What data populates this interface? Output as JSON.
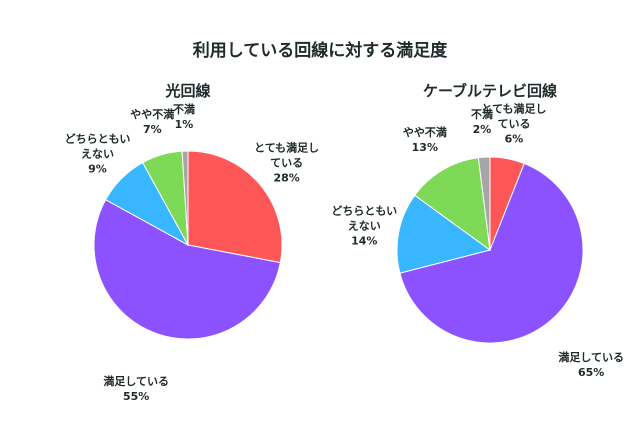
{
  "title": "利用している回線に対する満足度",
  "chart_data": [
    {
      "type": "pie",
      "title": "光回線",
      "categories": [
        "とても満足している",
        "満足している",
        "どちらともいえない",
        "やや不満",
        "不満"
      ],
      "values": [
        28,
        55,
        9,
        7,
        1
      ],
      "value_labels": [
        "28%",
        "55%",
        "9%",
        "7%",
        "1%"
      ],
      "colors": [
        "#ff5757",
        "#8c52ff",
        "#38b6ff",
        "#7ed957",
        "#a6a6a6"
      ]
    },
    {
      "type": "pie",
      "title": "ケーブルテレビ回線",
      "categories": [
        "とても満足している",
        "満足している",
        "どちらともいえない",
        "やや不満",
        "不満"
      ],
      "values": [
        6,
        65,
        14,
        13,
        2
      ],
      "value_labels": [
        "6%",
        "65%",
        "14%",
        "13%",
        "2%"
      ],
      "colors": [
        "#ff5757",
        "#8c52ff",
        "#38b6ff",
        "#7ed957",
        "#a6a6a6"
      ]
    }
  ]
}
